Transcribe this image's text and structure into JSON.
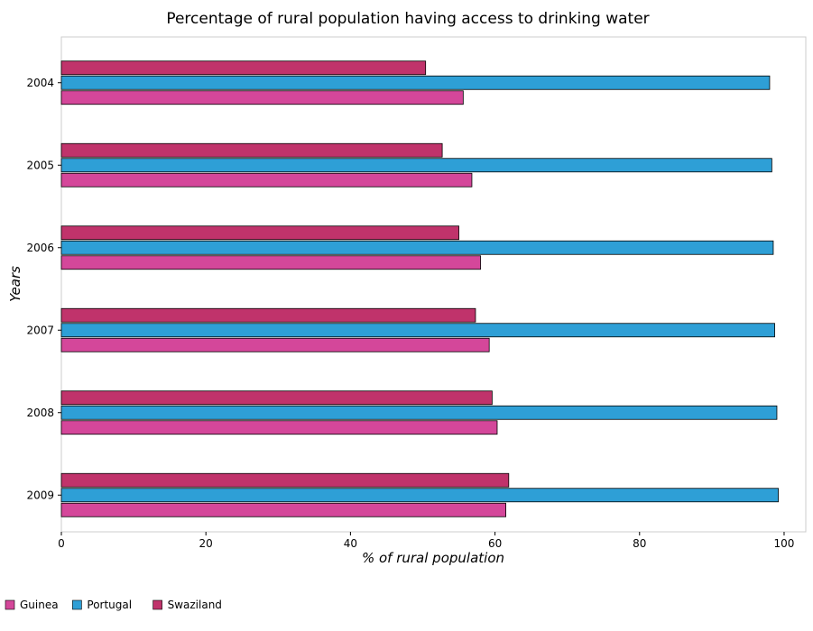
{
  "colors": {
    "guinea": "#d4479a",
    "portugal": "#2e9fd6",
    "swaziland": "#c0336b"
  },
  "chart_data": {
    "type": "bar",
    "orientation": "horizontal",
    "title": "Percentage of rural population having access to drinking water",
    "xlabel": "% of rural population",
    "ylabel": "Years",
    "xlim": [
      0,
      103
    ],
    "xticks": [
      0,
      20,
      40,
      60,
      80,
      100
    ],
    "categories": [
      "2004",
      "2005",
      "2006",
      "2007",
      "2008",
      "2009"
    ],
    "series": [
      {
        "name": "Guinea",
        "color": "#d4479a",
        "values": [
          55.6,
          56.8,
          58.0,
          59.2,
          60.3,
          61.5
        ]
      },
      {
        "name": "Portugal",
        "color": "#2e9fd6",
        "values": [
          98.0,
          98.3,
          98.5,
          98.7,
          99.0,
          99.2
        ]
      },
      {
        "name": "Swaziland",
        "color": "#c0336b",
        "values": [
          50.4,
          52.7,
          55.0,
          57.3,
          59.6,
          61.9
        ]
      }
    ],
    "grid": false,
    "legend_position": "bottom-left"
  }
}
